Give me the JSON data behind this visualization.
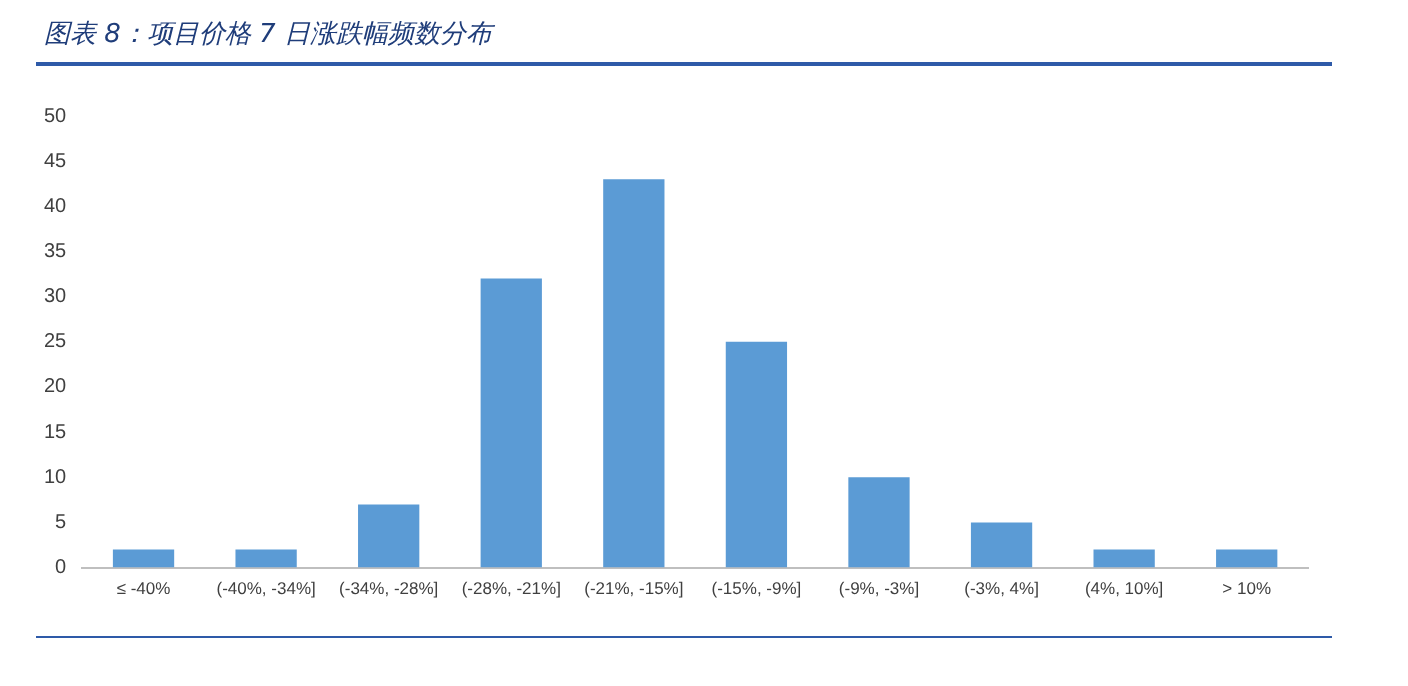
{
  "chart_data": {
    "type": "bar",
    "title": "图表 8：项目价格 7 日涨跌幅频数分布",
    "categories": [
      "≤ -40%",
      "(-40%, -34%]",
      "(-34%, -28%]",
      "(-28%, -21%]",
      "(-21%, -15%]",
      "(-15%, -9%]",
      "(-9%, -3%]",
      "(-3%, 4%]",
      "(4%, 10%]",
      "> 10%"
    ],
    "values": [
      2,
      2,
      7,
      32,
      43,
      25,
      10,
      5,
      2,
      2
    ],
    "color": "#5b9bd5",
    "ylim": [
      0,
      50
    ],
    "yticks": [
      0,
      5,
      10,
      15,
      20,
      25,
      30,
      35,
      40,
      45,
      50
    ],
    "grid": false,
    "legend": false
  }
}
